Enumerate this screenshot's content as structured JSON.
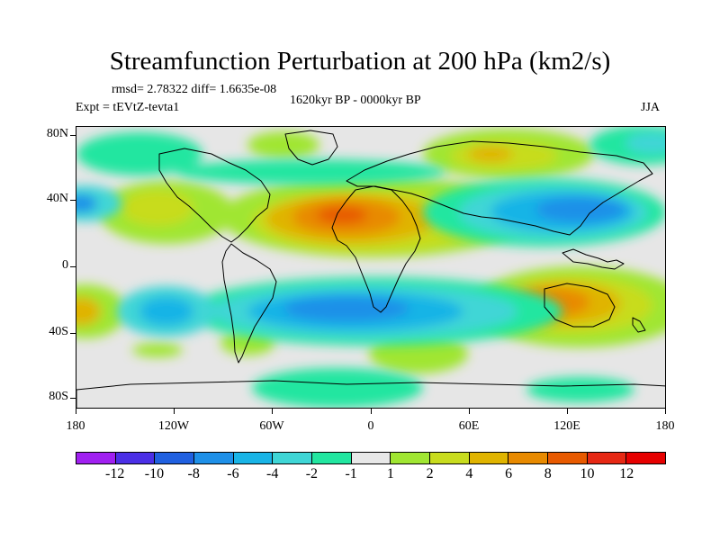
{
  "title": "Streamfunction Perturbation at 200 hPa (km2/s)",
  "stats": "rmsd= 2.78322 diff= 1.6635e-08",
  "experiment": "Expt = tEVtZ-tevta1",
  "period": "1620kyr BP - 0000kyr BP",
  "season": "JJA",
  "lat_labels": [
    "80N",
    "40N",
    "0",
    "40S",
    "80S"
  ],
  "lon_labels": [
    "180",
    "120W",
    "60W",
    "0",
    "60E",
    "120E",
    "180"
  ],
  "colorbar": {
    "labels": [
      "-12",
      "-10",
      "-8",
      "-6",
      "-4",
      "-2",
      "-1",
      "1",
      "2",
      "4",
      "6",
      "8",
      "10",
      "12"
    ],
    "colors": [
      "#a020f0",
      "#4b2fe6",
      "#2060e0",
      "#1e90e8",
      "#19b4e6",
      "#3fd6d6",
      "#22e6a0",
      "#e8e8e8",
      "#a0e632",
      "#c8dc1e",
      "#e0b400",
      "#e88a00",
      "#e85a00",
      "#e62814",
      "#e60000"
    ]
  }
}
